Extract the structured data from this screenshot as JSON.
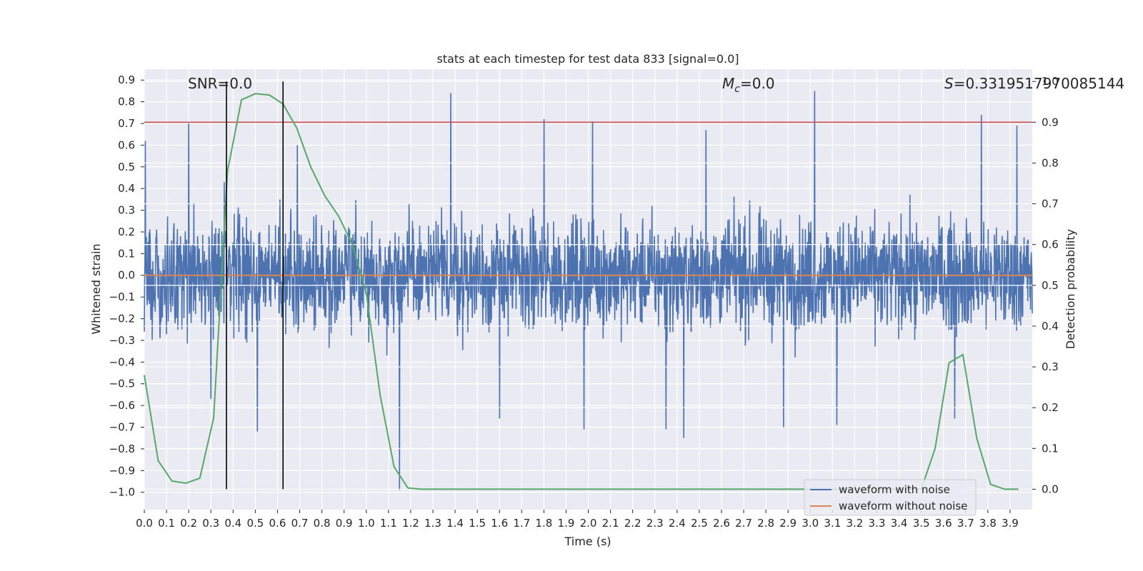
{
  "chart_data": {
    "type": "line",
    "title": "stats at each timestep for test data 833 [signal=0.0]",
    "xlabel": "Time (s)",
    "ylabel": "Whitened strain",
    "y2label": "Detection probability",
    "xlim": [
      0.0,
      4.0
    ],
    "ylim": [
      -1.08,
      0.95
    ],
    "y2lim": [
      -0.05,
      1.03
    ],
    "grid": true,
    "legend_position": "lower-right",
    "x_ticks": [
      "0.0",
      "0.1",
      "0.2",
      "0.3",
      "0.4",
      "0.5",
      "0.6",
      "0.7",
      "0.8",
      "0.9",
      "1.0",
      "1.1",
      "1.2",
      "1.3",
      "1.4",
      "1.5",
      "1.6",
      "1.7",
      "1.8",
      "1.9",
      "2.0",
      "2.1",
      "2.2",
      "2.3",
      "2.4",
      "2.5",
      "2.6",
      "2.7",
      "2.8",
      "2.9",
      "3.0",
      "3.1",
      "3.2",
      "3.3",
      "3.4",
      "3.5",
      "3.6",
      "3.7",
      "3.8",
      "3.9"
    ],
    "y_ticks": [
      "0.9",
      "0.8",
      "0.7",
      "0.6",
      "0.5",
      "0.4",
      "0.3",
      "0.2",
      "0.1",
      "0.0",
      "−0.1",
      "−0.2",
      "−0.3",
      "−0.4",
      "−0.5",
      "−0.6",
      "−0.7",
      "−0.8",
      "−0.9",
      "−1.0"
    ],
    "y2_ticks": [
      "1.0",
      "0.9",
      "0.8",
      "0.7",
      "0.6",
      "0.5",
      "0.4",
      "0.3",
      "0.2",
      "0.1",
      "0.0"
    ],
    "annotations": {
      "snr": "SNR=0.0",
      "mc_symbol": "M",
      "mc_sub": "c",
      "mc_value": "=0.0",
      "s_symbol": "S",
      "s_value": "=0.3319517970085144"
    },
    "vertical_lines": [
      0.37,
      0.625
    ],
    "threshold": 0.9,
    "series": [
      {
        "name": "waveform with noise",
        "color": "#4c72b0",
        "type": "noise",
        "envelope": 0.45,
        "peaks": [
          [
            0.005,
            0.62
          ],
          [
            0.2,
            0.7
          ],
          [
            0.3,
            -0.57
          ],
          [
            0.36,
            0.43
          ],
          [
            0.51,
            -0.72
          ],
          [
            0.69,
            0.6
          ],
          [
            1.15,
            -0.99
          ],
          [
            1.38,
            0.84
          ],
          [
            1.6,
            -0.66
          ],
          [
            1.8,
            0.72
          ],
          [
            1.98,
            -0.71
          ],
          [
            2.02,
            0.71
          ],
          [
            2.35,
            -0.71
          ],
          [
            2.43,
            -0.75
          ],
          [
            2.53,
            0.67
          ],
          [
            2.88,
            -0.7
          ],
          [
            3.02,
            0.85
          ],
          [
            3.12,
            -0.69
          ],
          [
            3.65,
            -0.66
          ],
          [
            3.77,
            0.74
          ],
          [
            3.93,
            0.69
          ]
        ]
      },
      {
        "name": "waveform without noise",
        "color": "#dd8452",
        "x": [
          0.0,
          4.0
        ],
        "y": [
          0.0,
          0.0
        ]
      }
    ],
    "probability": {
      "color": "#55a868",
      "x": [
        0.0,
        0.0625,
        0.125,
        0.1875,
        0.25,
        0.3125,
        0.375,
        0.4375,
        0.5,
        0.5625,
        0.625,
        0.6875,
        0.75,
        0.8125,
        0.875,
        0.9375,
        1.0,
        1.0625,
        1.125,
        1.1875,
        1.25,
        1.3125,
        1.375,
        1.4375,
        1.5,
        1.5625,
        1.625,
        1.6875,
        1.75,
        1.8125,
        1.875,
        1.9375,
        2.0,
        2.0625,
        2.125,
        2.1875,
        2.25,
        2.3125,
        2.375,
        2.4375,
        2.5,
        2.5625,
        2.625,
        2.6875,
        2.75,
        2.8125,
        2.875,
        2.9375,
        3.0,
        3.0625,
        3.125,
        3.1875,
        3.25,
        3.3125,
        3.375,
        3.4375,
        3.5,
        3.5625,
        3.625,
        3.6875,
        3.75,
        3.8125,
        3.875,
        3.9375
      ],
      "y": [
        0.28,
        0.07,
        0.02,
        0.015,
        0.027,
        0.175,
        0.78,
        0.955,
        0.97,
        0.967,
        0.945,
        0.885,
        0.79,
        0.72,
        0.67,
        0.6,
        0.48,
        0.23,
        0.055,
        0.003,
        0.0,
        0.0,
        0.0,
        0.0,
        0.0,
        0.0,
        0.0,
        0.0,
        0.0,
        0.0,
        0.0,
        0.0,
        0.0,
        0.0,
        0.0,
        0.0,
        0.0,
        0.0,
        0.0,
        0.0,
        0.0,
        0.0,
        0.0,
        0.0,
        0.0,
        0.0,
        0.0,
        0.0,
        0.0,
        0.0,
        0.0,
        0.0,
        0.0,
        0.0,
        0.0,
        0.0,
        0.0,
        0.1,
        0.31,
        0.33,
        0.125,
        0.012,
        0.0,
        0.0
      ]
    }
  }
}
